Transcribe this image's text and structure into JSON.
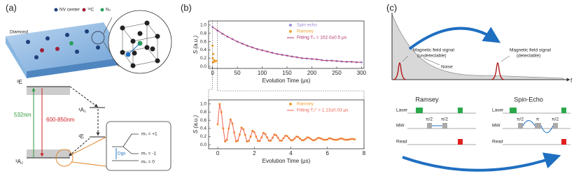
{
  "panel_a": {
    "label": "(a)",
    "legend": [
      "NV center",
      "¹³C",
      "Nₛ"
    ],
    "material": "Diamond",
    "levels": [
      "³E",
      "¹A₁",
      "¹E",
      "³A₂"
    ],
    "excitation": "532nm",
    "emission": "600-850nm",
    "states": [
      "mₛ = +1",
      "mₛ = -1",
      "mₛ = 0"
    ],
    "splitting": "Dgs"
  },
  "panel_b": {
    "label": "(b)"
  },
  "chart_data": [
    {
      "type": "line",
      "xlabel": "Evolution Time (μs)",
      "ylabel": "S (a.u.)",
      "xlim": [
        -8,
        305
      ],
      "ylim": [
        -0.05,
        1.1
      ],
      "xticks": [
        0,
        50,
        100,
        150,
        200,
        250,
        300
      ],
      "yticks": [
        {
          "value": 0,
          "label": "0.0"
        },
        {
          "value": 0.2,
          "label": "0.2"
        },
        {
          "value": 0.4,
          "label": "0.4"
        },
        {
          "value": 0.6,
          "label": "0.6"
        },
        {
          "value": 0.8,
          "label": "0.8"
        },
        {
          "value": 1,
          "label": "1.0"
        }
      ],
      "series": [
        {
          "name": "Spin echo",
          "color": "#9a8fd8",
          "mode": "markers",
          "x": [
            0,
            10,
            20,
            30,
            40,
            50,
            60,
            70,
            80,
            90,
            100,
            110,
            120,
            130,
            140,
            150,
            160,
            170,
            180,
            190,
            200,
            210,
            220,
            230,
            240,
            250,
            260,
            270,
            280,
            290,
            300
          ],
          "values": [
            0.95,
            0.87,
            0.79,
            0.72,
            0.66,
            0.6,
            0.55,
            0.5,
            0.46,
            0.42,
            0.39,
            0.36,
            0.33,
            0.3,
            0.28,
            0.26,
            0.24,
            0.22,
            0.2,
            0.19,
            0.18,
            0.17,
            0.15,
            0.14,
            0.14,
            0.13,
            0.12,
            0.11,
            0.11,
            0.1,
            0.1
          ]
        },
        {
          "name": "Ramsey",
          "color": "#f0a030",
          "mode": "markers",
          "x": [
            0,
            0.5,
            1,
            1.5,
            2,
            3,
            4,
            6,
            8
          ],
          "values": [
            0.5,
            0.2,
            0.1,
            0.3,
            0.1,
            0.15,
            0.12,
            0.13,
            0.13
          ]
        },
        {
          "name": "Fitting T₂ = 102.0±0.5 μs",
          "color": "#b0306a",
          "mode": "line",
          "x": [
            0,
            10,
            20,
            30,
            40,
            50,
            60,
            70,
            80,
            90,
            100,
            110,
            120,
            130,
            140,
            150,
            160,
            170,
            180,
            190,
            200,
            210,
            220,
            230,
            240,
            250,
            260,
            270,
            280,
            290,
            300
          ],
          "values": [
            0.95,
            0.87,
            0.79,
            0.72,
            0.66,
            0.6,
            0.55,
            0.5,
            0.46,
            0.42,
            0.39,
            0.36,
            0.33,
            0.3,
            0.28,
            0.26,
            0.24,
            0.22,
            0.2,
            0.19,
            0.18,
            0.17,
            0.15,
            0.14,
            0.14,
            0.13,
            0.12,
            0.11,
            0.11,
            0.1,
            0.1
          ]
        }
      ]
    },
    {
      "type": "line",
      "xlabel": "Evolution Time (μs)",
      "ylabel": "S (a.u.)",
      "xlim": [
        -0.5,
        8
      ],
      "ylim": [
        -0.1,
        1.1
      ],
      "xticks": [
        0,
        2,
        4,
        6,
        8
      ],
      "yticks": [
        {
          "value": 0,
          "label": "0.0"
        },
        {
          "value": 0.2,
          "label": "0.2"
        },
        {
          "value": 0.4,
          "label": "0.4"
        },
        {
          "value": 0.6,
          "label": "0.6"
        },
        {
          "value": 0.8,
          "label": "0.8"
        },
        {
          "value": 1,
          "label": "1.0"
        }
      ],
      "series": [
        {
          "name": "Ramsey",
          "color": "#f0a030",
          "mode": "markers",
          "x": [
            0,
            0.1,
            0.2,
            0.3,
            0.4,
            0.5,
            0.6,
            0.7,
            0.8,
            0.9,
            1,
            1.1,
            1.2,
            1.3,
            1.4,
            1.5,
            1.6,
            1.7,
            1.8,
            1.9,
            2,
            2.1,
            2.2,
            2.3,
            2.4,
            2.5,
            2.6,
            2.7,
            2.8,
            2.9,
            3,
            3.1,
            3.2,
            3.3,
            3.4,
            3.5,
            3.6,
            3.7,
            3.8,
            3.9,
            4,
            4.1,
            4.2,
            4.3,
            4.4,
            4.5,
            4.6,
            4.7,
            4.8,
            4.9,
            5,
            5.1,
            5.2,
            5.3,
            5.4,
            5.5,
            5.6,
            5.7,
            5.8,
            5.9,
            6,
            6.1,
            6.2,
            6.3,
            6.4,
            6.5,
            6.6,
            6.7,
            6.8,
            6.9,
            7,
            7.1,
            7.2,
            7.3,
            7.4,
            7.5
          ],
          "values": [
            0.5,
            1,
            0.8,
            0.4,
            0.08,
            0.12,
            0.4,
            0.62,
            0.52,
            0.3,
            0.08,
            0.1,
            0.25,
            0.42,
            0.38,
            0.24,
            0.08,
            0.09,
            0.2,
            0.34,
            0.31,
            0.2,
            0.09,
            0.09,
            0.18,
            0.29,
            0.26,
            0.18,
            0.1,
            0.1,
            0.17,
            0.25,
            0.23,
            0.17,
            0.1,
            0.1,
            0.16,
            0.22,
            0.21,
            0.16,
            0.11,
            0.11,
            0.15,
            0.2,
            0.19,
            0.15,
            0.11,
            0.11,
            0.14,
            0.18,
            0.17,
            0.14,
            0.11,
            0.11,
            0.14,
            0.17,
            0.16,
            0.14,
            0.12,
            0.12,
            0.13,
            0.16,
            0.15,
            0.13,
            0.12,
            0.12,
            0.13,
            0.15,
            0.15,
            0.13,
            0.12,
            0.12,
            0.13,
            0.14,
            0.14,
            0.13
          ]
        },
        {
          "name": "Fitting T₂* = 1.13±0.03 μs",
          "color": "#f06050",
          "mode": "line",
          "x": [
            0,
            0.1,
            0.2,
            0.3,
            0.4,
            0.5,
            0.6,
            0.7,
            0.8,
            0.9,
            1,
            1.1,
            1.2,
            1.3,
            1.4,
            1.5,
            1.6,
            1.7,
            1.8,
            1.9,
            2,
            2.1,
            2.2,
            2.3,
            2.4,
            2.5,
            2.6,
            2.7,
            2.8,
            2.9,
            3,
            3.1,
            3.2,
            3.3,
            3.4,
            3.5,
            3.6,
            3.7,
            3.8,
            3.9,
            4,
            4.1,
            4.2,
            4.3,
            4.4,
            4.5,
            4.6,
            4.7,
            4.8,
            4.9,
            5,
            5.1,
            5.2,
            5.3,
            5.4,
            5.5,
            5.6,
            5.7,
            5.8,
            5.9,
            6,
            6.1,
            6.2,
            6.3,
            6.4,
            6.5,
            6.6,
            6.7,
            6.8,
            6.9,
            7,
            7.1,
            7.2,
            7.3,
            7.4,
            7.5
          ],
          "values": [
            0.5,
            1,
            0.8,
            0.4,
            0.08,
            0.12,
            0.4,
            0.62,
            0.52,
            0.3,
            0.08,
            0.1,
            0.25,
            0.42,
            0.38,
            0.24,
            0.08,
            0.09,
            0.2,
            0.34,
            0.31,
            0.2,
            0.09,
            0.09,
            0.18,
            0.29,
            0.26,
            0.18,
            0.1,
            0.1,
            0.17,
            0.25,
            0.23,
            0.17,
            0.1,
            0.1,
            0.16,
            0.22,
            0.21,
            0.16,
            0.11,
            0.11,
            0.15,
            0.2,
            0.19,
            0.15,
            0.11,
            0.11,
            0.14,
            0.18,
            0.17,
            0.14,
            0.11,
            0.11,
            0.14,
            0.17,
            0.16,
            0.14,
            0.12,
            0.12,
            0.13,
            0.16,
            0.15,
            0.13,
            0.12,
            0.12,
            0.13,
            0.15,
            0.15,
            0.13,
            0.12,
            0.12,
            0.13,
            0.14,
            0.14,
            0.13
          ]
        }
      ]
    }
  ],
  "panel_c": {
    "label": "(c)",
    "signal_left": [
      "Magnetic field signal",
      "(undetectable)"
    ],
    "noise": "Noise",
    "signal_right": [
      "Magnetic field signal",
      "(detectable)"
    ],
    "axis": "f",
    "sequences": [
      {
        "title": "Ramsey",
        "rows": [
          "Laser",
          "MW",
          "Read"
        ],
        "pulses": [
          "π/2",
          "π/2"
        ]
      },
      {
        "title": "Spin-Echo",
        "rows": [
          "Laser",
          "MW",
          "Read"
        ],
        "pulses": [
          "π/2",
          "π",
          "π/2"
        ]
      }
    ]
  }
}
